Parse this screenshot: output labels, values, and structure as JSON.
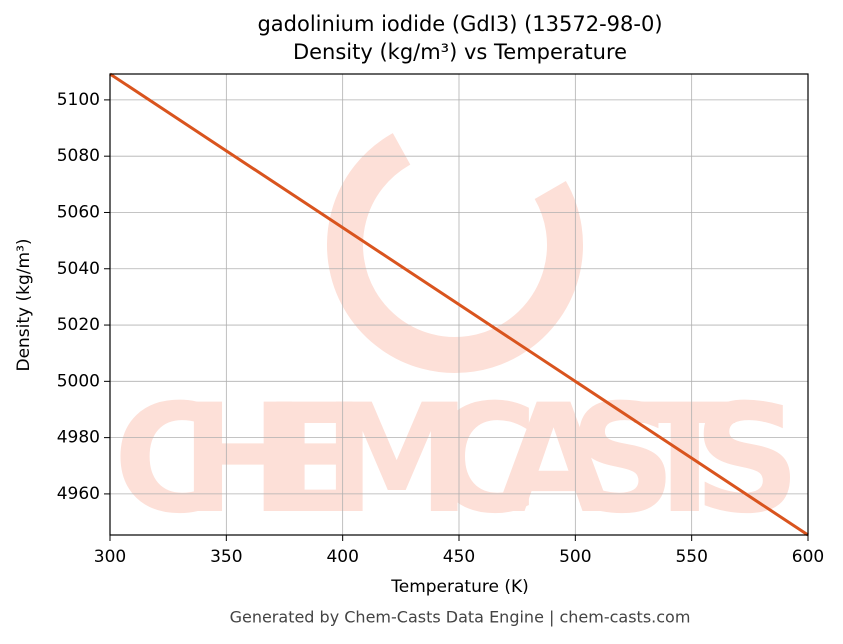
{
  "chart_data": {
    "type": "line",
    "title": "gadolinium iodide (GdI3) (13572-98-0)",
    "subtitle": "Density (kg/m³) vs Temperature",
    "x_label": "Temperature (K)",
    "y_label": "Density (kg/m³)",
    "footer": "Generated by Chem-Casts Data Engine | chem-casts.com",
    "watermark": "CHEMCASTS",
    "x": [
      300,
      350,
      400,
      450,
      500,
      550,
      600
    ],
    "series": [
      {
        "name": "Density",
        "color": "#d9541e",
        "values": [
          5109.2,
          5081.9,
          5054.6,
          5027.3,
          5000,
          4972.7,
          4945.4
        ]
      }
    ],
    "xlim": [
      300,
      600
    ],
    "xticks": [
      300,
      350,
      400,
      450,
      500,
      550,
      600
    ],
    "ylim": [
      4945.4,
      5109.2
    ],
    "yticks": [
      4960,
      4980,
      5000,
      5020,
      5040,
      5060,
      5080,
      5100
    ],
    "grid": true
  }
}
